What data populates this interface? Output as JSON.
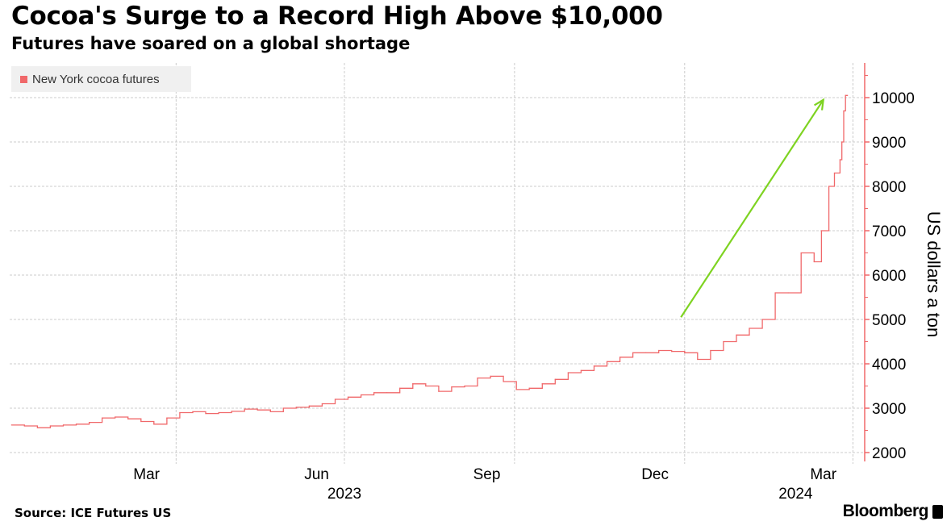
{
  "header": {
    "title": "Cocoa's Surge to a Record High Above $10,000",
    "subtitle": "Futures have soared on a global shortage"
  },
  "footer": {
    "source": "Source: ICE Futures US",
    "logo": "Bloomberg"
  },
  "chart_data": {
    "type": "line",
    "line_style": "step",
    "title": "Cocoa's Surge to a Record High Above $10,000",
    "subtitle": "Futures have soared on a global shortage",
    "ylabel": "US dollars a ton",
    "xlabel": "",
    "ylim": [
      1900,
      10800
    ],
    "xlim": [
      "2023-01-01",
      "2024-04-03"
    ],
    "yticks": [
      2000,
      3000,
      4000,
      5000,
      6000,
      7000,
      8000,
      9000,
      10000
    ],
    "xticks": [
      {
        "label": "Mar",
        "date": "2023-03-16"
      },
      {
        "label": "Jun",
        "date": "2023-06-16"
      },
      {
        "label": "Sep",
        "date": "2023-09-16"
      },
      {
        "label": "Dec",
        "date": "2023-12-16"
      },
      {
        "label": "Mar",
        "date": "2024-03-16"
      }
    ],
    "year_labels": [
      {
        "label": "2023",
        "date": "2023-07-01"
      },
      {
        "label": "2024",
        "date": "2024-03-01"
      }
    ],
    "x_gridlines": [
      "2023-04-01",
      "2023-07-01",
      "2023-10-01",
      "2024-01-01",
      "2024-04-01"
    ],
    "grid": true,
    "y_axis_position": "right",
    "legend_position": "top-left",
    "colors": {
      "series": "#f0686a",
      "axis": "#f0686a",
      "annotation_arrow": "#7ed321",
      "grid": "#cccccc"
    },
    "annotation": {
      "type": "arrow",
      "from": {
        "x": "2023-12-30",
        "y": 5050
      },
      "to": {
        "x": "2024-03-16",
        "y": 9950
      }
    },
    "series": [
      {
        "name": "New York cocoa futures",
        "x": [
          "2023-01-02",
          "2023-01-09",
          "2023-01-16",
          "2023-01-23",
          "2023-01-30",
          "2023-02-06",
          "2023-02-13",
          "2023-02-20",
          "2023-02-27",
          "2023-03-06",
          "2023-03-13",
          "2023-03-20",
          "2023-03-27",
          "2023-04-03",
          "2023-04-10",
          "2023-04-17",
          "2023-04-24",
          "2023-05-01",
          "2023-05-08",
          "2023-05-15",
          "2023-05-22",
          "2023-05-29",
          "2023-06-05",
          "2023-06-12",
          "2023-06-19",
          "2023-06-26",
          "2023-07-03",
          "2023-07-10",
          "2023-07-17",
          "2023-07-24",
          "2023-07-31",
          "2023-08-07",
          "2023-08-14",
          "2023-08-21",
          "2023-08-28",
          "2023-09-04",
          "2023-09-11",
          "2023-09-18",
          "2023-09-25",
          "2023-10-02",
          "2023-10-09",
          "2023-10-16",
          "2023-10-23",
          "2023-10-30",
          "2023-11-06",
          "2023-11-13",
          "2023-11-20",
          "2023-11-27",
          "2023-12-04",
          "2023-12-11",
          "2023-12-18",
          "2023-12-25",
          "2024-01-01",
          "2024-01-08",
          "2024-01-15",
          "2024-01-22",
          "2024-01-29",
          "2024-02-05",
          "2024-02-12",
          "2024-02-19",
          "2024-02-26",
          "2024-03-04",
          "2024-03-11",
          "2024-03-15",
          "2024-03-19",
          "2024-03-22",
          "2024-03-25",
          "2024-03-26",
          "2024-03-27",
          "2024-03-28"
        ],
        "values": [
          2620,
          2600,
          2560,
          2600,
          2620,
          2640,
          2680,
          2780,
          2800,
          2760,
          2700,
          2640,
          2780,
          2900,
          2920,
          2880,
          2900,
          2930,
          2980,
          2960,
          2920,
          3000,
          3020,
          3050,
          3100,
          3200,
          3250,
          3300,
          3350,
          3350,
          3450,
          3550,
          3500,
          3380,
          3480,
          3500,
          3680,
          3720,
          3600,
          3420,
          3450,
          3550,
          3650,
          3800,
          3850,
          3950,
          4050,
          4150,
          4250,
          4250,
          4300,
          4280,
          4250,
          4100,
          4300,
          4500,
          4650,
          4800,
          5000,
          5600,
          5600,
          6500,
          6300,
          7000,
          8000,
          8300,
          8600,
          9000,
          9700,
          10050
        ]
      }
    ]
  }
}
